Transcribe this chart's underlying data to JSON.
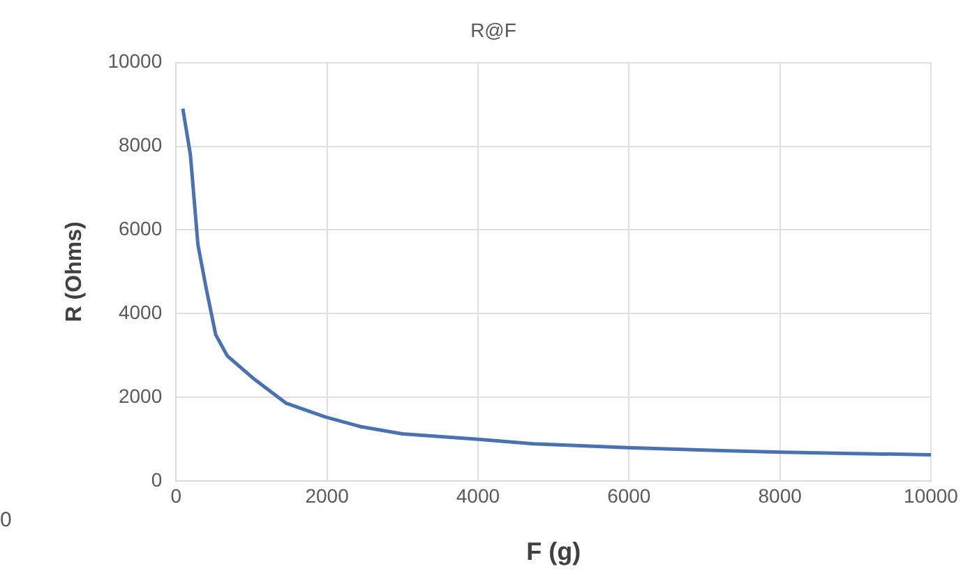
{
  "chart_data": {
    "type": "line",
    "title": "R@F",
    "xlabel": "F (g)",
    "ylabel": "R (Ohms)",
    "x": [
      90,
      190,
      290,
      400,
      525,
      680,
      1020,
      1460,
      1980,
      2450,
      3000,
      4000,
      4740,
      5980,
      7000,
      8020,
      9000,
      10000
    ],
    "series": [
      {
        "color": "#4a72b0",
        "values": [
          8900,
          7800,
          5650,
          4600,
          3500,
          2990,
          2460,
          1860,
          1530,
          1300,
          1130,
          1000,
          890,
          800,
          740,
          690,
          660,
          630
        ]
      }
    ],
    "xlim": [
      0,
      10000
    ],
    "xticks": [
      0,
      2000,
      4000,
      6000,
      8000,
      10000
    ],
    "ylim": [
      0,
      10000
    ],
    "yticks": [
      0,
      2000,
      4000,
      6000,
      8000,
      10000
    ],
    "grid": true,
    "legend": false,
    "marker": "none",
    "line_style": "solid",
    "annotations": [
      "0"
    ]
  }
}
